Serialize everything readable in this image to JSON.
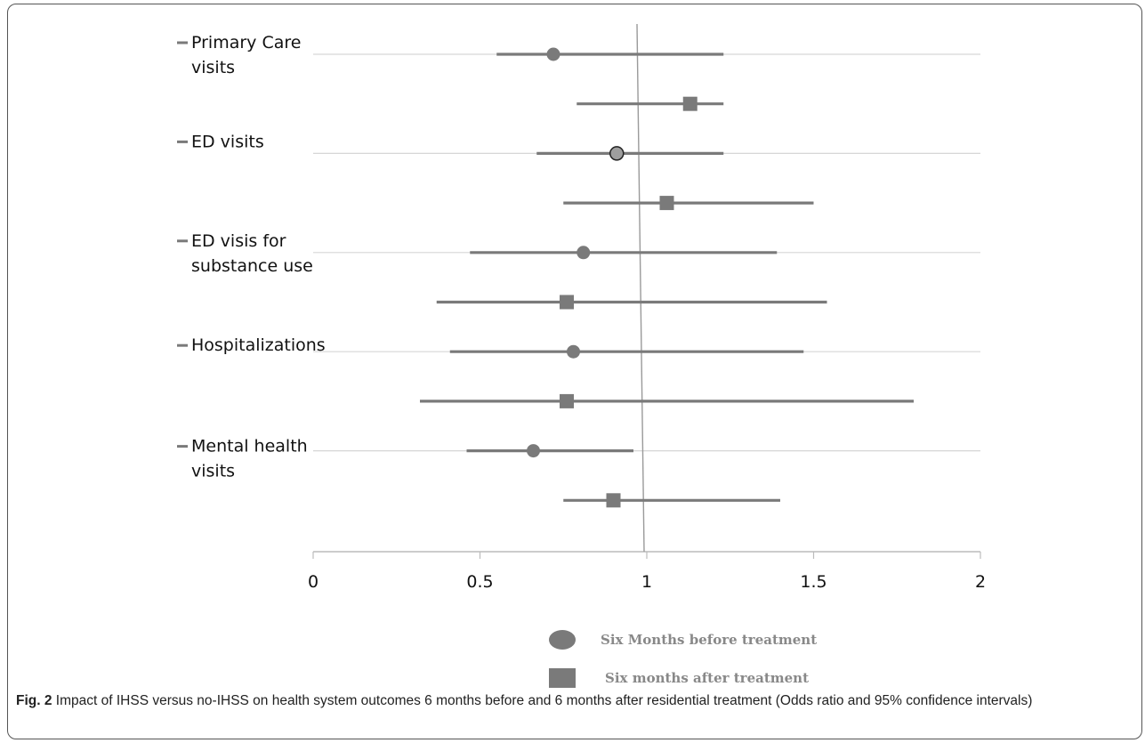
{
  "caption": {
    "label": "Fig. 2",
    "text": "Impact of IHSS versus no-IHSS on health system outcomes 6 months before and 6 months after residential treatment (Odds ratio and 95% confidence intervals)"
  },
  "colors": {
    "series": "#7a7a7a",
    "gridline": "#d6d6d6",
    "reference_line": "#9a9a9a",
    "axis": "#bcbcbc",
    "highlight_marker": "#9e9e9e"
  },
  "chart_data": {
    "type": "scatter",
    "subtype": "forest_plot",
    "xlim": [
      0,
      2
    ],
    "x_ticks": [
      "0",
      "0.5",
      "1",
      "1.5",
      "2"
    ],
    "reference_line": 1,
    "grid": true,
    "legend_placement": "bottom-center",
    "categories": [
      "Primary Care visits",
      "ED visits",
      "ED visis for substance use",
      "Hospitalizations",
      "Mental health visits"
    ],
    "category_labels": [
      [
        "Primary Care",
        "visits"
      ],
      [
        "ED visits"
      ],
      [
        "ED visis for",
        "substance use"
      ],
      [
        "Hospitalizations"
      ],
      [
        "Mental health",
        "visits"
      ]
    ],
    "series": [
      {
        "name": "Six Months before treatment",
        "marker": "circle",
        "points": [
          {
            "category": "Primary Care visits",
            "or": 0.72,
            "ci_low": 0.55,
            "ci_high": 1.23
          },
          {
            "category": "ED visits",
            "or": 0.91,
            "ci_low": 0.67,
            "ci_high": 1.23
          },
          {
            "category": "ED visis for substance use",
            "or": 0.81,
            "ci_low": 0.47,
            "ci_high": 1.39
          },
          {
            "category": "Hospitalizations",
            "or": 0.78,
            "ci_low": 0.41,
            "ci_high": 1.47
          },
          {
            "category": "Mental health visits",
            "or": 0.66,
            "ci_low": 0.46,
            "ci_high": 0.96
          }
        ]
      },
      {
        "name": "Six months after treatment",
        "marker": "square",
        "points": [
          {
            "category": "Primary Care visits",
            "or": 1.13,
            "ci_low": 0.79,
            "ci_high": 1.23
          },
          {
            "category": "ED visits",
            "or": 1.06,
            "ci_low": 0.75,
            "ci_high": 1.5
          },
          {
            "category": "ED visis for substance use",
            "or": 0.76,
            "ci_low": 0.37,
            "ci_high": 1.54
          },
          {
            "category": "Hospitalizations",
            "or": 0.76,
            "ci_low": 0.32,
            "ci_high": 1.8
          },
          {
            "category": "Mental health visits",
            "or": 0.9,
            "ci_low": 0.75,
            "ci_high": 1.4
          }
        ]
      }
    ]
  }
}
